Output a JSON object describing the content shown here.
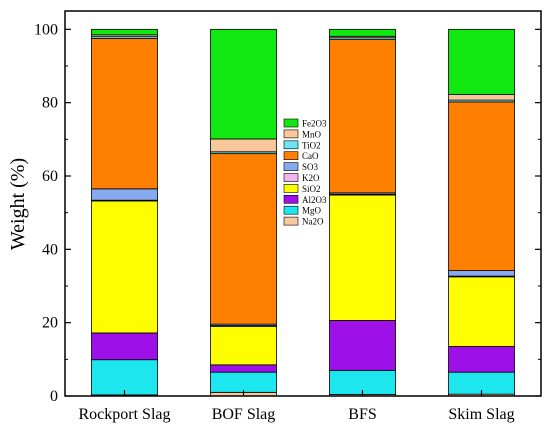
{
  "chart_data": {
    "type": "bar",
    "stacked": true,
    "title": "",
    "xlabel": "",
    "ylabel": "Weight (%)",
    "ylim": [
      0,
      105
    ],
    "yticks": [
      0,
      20,
      40,
      60,
      80,
      100
    ],
    "grid": false,
    "legend_position": "center",
    "categories": [
      "Rockport Slag",
      "BOF Slag",
      "BFS",
      "Skim Slag"
    ],
    "series": [
      {
        "name": "Na2O",
        "color": "#f7c9a0",
        "values": [
          0.3,
          1.0,
          0.4,
          0.5
        ]
      },
      {
        "name": "MgO",
        "color": "#1ee6ee",
        "values": [
          9.6,
          5.5,
          6.6,
          6.0
        ]
      },
      {
        "name": "Al2O3",
        "color": "#9d10e8",
        "values": [
          7.3,
          2.0,
          13.6,
          7.0
        ]
      },
      {
        "name": "SiO2",
        "color": "#fefe00",
        "values": [
          36.0,
          10.5,
          34.2,
          19.0
        ]
      },
      {
        "name": "K2O",
        "color": "#f4b4f0",
        "values": [
          0.2,
          0.2,
          0.2,
          0.2
        ]
      },
      {
        "name": "SO3",
        "color": "#86a9f0",
        "values": [
          3.1,
          0.4,
          0.4,
          1.5
        ]
      },
      {
        "name": "CaO",
        "color": "#ff7f00",
        "values": [
          41.0,
          46.5,
          41.8,
          46.0
        ]
      },
      {
        "name": "TiO2",
        "color": "#6ee4f0",
        "values": [
          0.5,
          0.5,
          0.5,
          0.5
        ]
      },
      {
        "name": "MnO",
        "color": "#f8c89a",
        "values": [
          0.5,
          3.5,
          0.4,
          1.5
        ]
      },
      {
        "name": "Fe2O3",
        "color": "#11e711",
        "values": [
          1.5,
          29.9,
          1.9,
          17.8
        ]
      }
    ]
  }
}
